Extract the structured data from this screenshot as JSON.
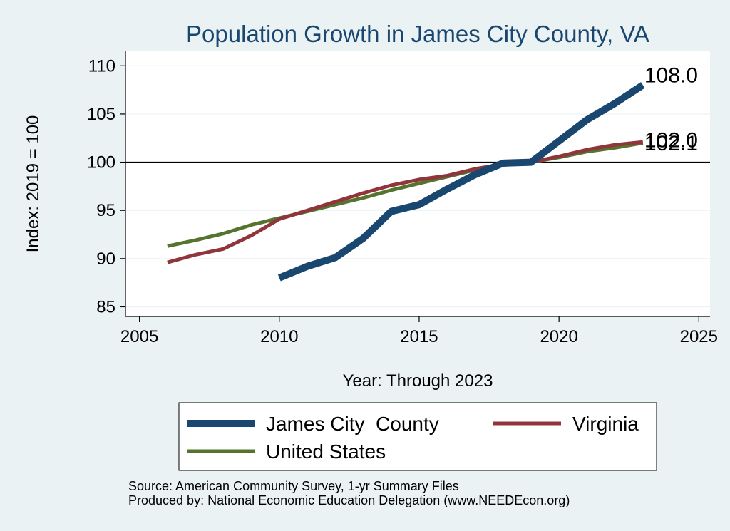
{
  "chart_data": {
    "type": "line",
    "title": "Population Growth in James City County, VA",
    "xlabel": "Year: Through 2023",
    "ylabel": "Index: 2019 = 100",
    "xlim": [
      2004.5,
      2025.4
    ],
    "ylim": [
      84,
      111.5
    ],
    "xticks": [
      2005,
      2010,
      2015,
      2020,
      2025
    ],
    "yticks": [
      85,
      90,
      95,
      100,
      105,
      110
    ],
    "reference_line": 100,
    "grid": true,
    "legend_position": "bottom",
    "series": [
      {
        "name": "James City  County",
        "color": "#1a476f",
        "x": [
          2010,
          2011,
          2012,
          2013,
          2014,
          2015,
          2016,
          2017,
          2018,
          2019,
          2020,
          2021,
          2022,
          2023
        ],
        "y": [
          88.0,
          89.2,
          90.1,
          92.1,
          94.9,
          95.6,
          97.2,
          98.7,
          99.9,
          100.0,
          102.2,
          104.4,
          106.1,
          108.0
        ],
        "end_label": "108.0"
      },
      {
        "name": "Virginia",
        "color": "#90353b",
        "x": [
          2006,
          2007,
          2008,
          2009,
          2010,
          2011,
          2012,
          2013,
          2014,
          2015,
          2016,
          2017,
          2018,
          2019,
          2020,
          2021,
          2022,
          2023
        ],
        "y": [
          89.6,
          90.4,
          91.0,
          92.4,
          94.1,
          95.0,
          95.9,
          96.8,
          97.6,
          98.2,
          98.6,
          99.3,
          99.8,
          100.0,
          100.6,
          101.3,
          101.8,
          102.1
        ],
        "end_label": "102.1"
      },
      {
        "name": "United States",
        "color": "#55752f",
        "x": [
          2006,
          2007,
          2008,
          2009,
          2010,
          2011,
          2012,
          2013,
          2014,
          2015,
          2016,
          2017,
          2018,
          2019,
          2020,
          2021,
          2022,
          2023
        ],
        "y": [
          91.3,
          91.9,
          92.6,
          93.5,
          94.2,
          94.9,
          95.6,
          96.3,
          97.1,
          97.8,
          98.5,
          99.2,
          99.7,
          100.0,
          100.5,
          101.1,
          101.5,
          102.0
        ],
        "end_label": "102.0"
      }
    ]
  },
  "notes": {
    "source": "Source: American Community Survey, 1-yr Summary Files",
    "producer": "Produced by: National Economic Education Delegation (www.NEEDEcon.org)"
  }
}
